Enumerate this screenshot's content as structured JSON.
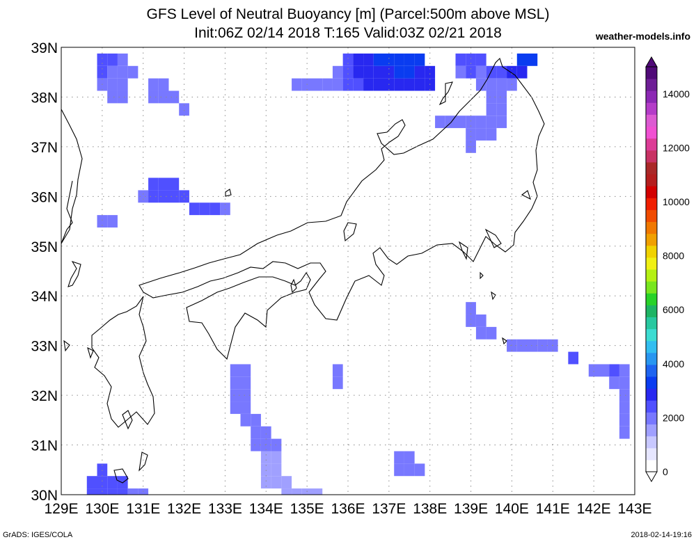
{
  "header": {
    "title_line1": "GFS Level of Neutral Buoyancy [m] (Parcel:500m above MSL)",
    "title_line2": "Init:06Z 02/14 2018 T:165 Valid:03Z 02/21 2018",
    "site": "weather-models.info"
  },
  "footer": {
    "left": "GrADS: IGES/COLA",
    "right": "2018-02-14-19:16"
  },
  "map": {
    "lon_range": [
      129,
      143
    ],
    "lat_range": [
      30,
      39
    ],
    "lon_ticks": [
      "129E",
      "130E",
      "131E",
      "132E",
      "133E",
      "134E",
      "135E",
      "136E",
      "137E",
      "138E",
      "139E",
      "140E",
      "141E",
      "142E",
      "143E"
    ],
    "lat_ticks": [
      "30N",
      "31N",
      "32N",
      "33N",
      "34N",
      "35N",
      "36N",
      "37N",
      "38N",
      "39N"
    ]
  },
  "colorbar": {
    "labels": [
      "0",
      "2000",
      "4000",
      "6000",
      "8000",
      "10000",
      "12000",
      "14000"
    ],
    "colors": [
      "#ffffff",
      "#e6e6ff",
      "#c8c8ff",
      "#a0a0ff",
      "#7878ff",
      "#5050ff",
      "#2828f0",
      "#0a3cf0",
      "#1e64f0",
      "#2896f0",
      "#32bef0",
      "#3cdcd2",
      "#28c8a0",
      "#1eb464",
      "#28d228",
      "#78e61e",
      "#b4f014",
      "#f0f014",
      "#f0d200",
      "#f0a000",
      "#f07800",
      "#f04b00",
      "#f01e00",
      "#d20000",
      "#b41e1e",
      "#aa2828",
      "#c83264",
      "#dc3c96",
      "#f050d2",
      "#dc5ad2",
      "#b43cc8",
      "#8c28b4",
      "#6e1e96",
      "#500a78"
    ],
    "min": 0,
    "max": 15000
  },
  "chart_data": {
    "type": "heatmap",
    "variable": "Level of Neutral Buoyancy",
    "units": "m",
    "grid_spacing_deg": 0.25,
    "cells": [
      {
        "lon": 130.0,
        "lat": 38.75,
        "value": 2400
      },
      {
        "lon": 130.25,
        "lat": 38.75,
        "value": 2300
      },
      {
        "lon": 130.5,
        "lat": 38.75,
        "value": 2200
      },
      {
        "lon": 130.0,
        "lat": 38.5,
        "value": 2300
      },
      {
        "lon": 130.25,
        "lat": 38.5,
        "value": 2200
      },
      {
        "lon": 130.5,
        "lat": 38.5,
        "value": 2000
      },
      {
        "lon": 130.75,
        "lat": 38.5,
        "value": 1800
      },
      {
        "lon": 130.0,
        "lat": 38.25,
        "value": 2100
      },
      {
        "lon": 130.25,
        "lat": 38.25,
        "value": 2000
      },
      {
        "lon": 130.5,
        "lat": 38.25,
        "value": 1900
      },
      {
        "lon": 130.25,
        "lat": 38.0,
        "value": 1800
      },
      {
        "lon": 130.5,
        "lat": 38.0,
        "value": 1800
      },
      {
        "lon": 131.25,
        "lat": 38.25,
        "value": 1900
      },
      {
        "lon": 131.5,
        "lat": 38.25,
        "value": 1800
      },
      {
        "lon": 131.25,
        "lat": 38.0,
        "value": 2000
      },
      {
        "lon": 131.5,
        "lat": 38.0,
        "value": 1900
      },
      {
        "lon": 131.75,
        "lat": 38.0,
        "value": 1800
      },
      {
        "lon": 132.0,
        "lat": 37.75,
        "value": 1900
      },
      {
        "lon": 131.25,
        "lat": 36.25,
        "value": 2400
      },
      {
        "lon": 131.5,
        "lat": 36.25,
        "value": 2500
      },
      {
        "lon": 131.75,
        "lat": 36.25,
        "value": 2400
      },
      {
        "lon": 131.0,
        "lat": 36.0,
        "value": 2100
      },
      {
        "lon": 131.25,
        "lat": 36.0,
        "value": 2400
      },
      {
        "lon": 131.5,
        "lat": 36.0,
        "value": 2500
      },
      {
        "lon": 131.75,
        "lat": 36.0,
        "value": 2400
      },
      {
        "lon": 132.0,
        "lat": 36.0,
        "value": 2300
      },
      {
        "lon": 132.25,
        "lat": 35.75,
        "value": 2300
      },
      {
        "lon": 132.5,
        "lat": 35.75,
        "value": 2400
      },
      {
        "lon": 132.75,
        "lat": 35.75,
        "value": 2300
      },
      {
        "lon": 133.0,
        "lat": 35.75,
        "value": 2200
      },
      {
        "lon": 130.0,
        "lat": 35.5,
        "value": 1900
      },
      {
        "lon": 130.25,
        "lat": 35.5,
        "value": 1900
      },
      {
        "lon": 134.75,
        "lat": 38.25,
        "value": 1800
      },
      {
        "lon": 135.0,
        "lat": 38.25,
        "value": 1900
      },
      {
        "lon": 135.25,
        "lat": 38.25,
        "value": 1900
      },
      {
        "lon": 135.5,
        "lat": 38.25,
        "value": 2000
      },
      {
        "lon": 135.75,
        "lat": 38.25,
        "value": 2100
      },
      {
        "lon": 136.0,
        "lat": 38.25,
        "value": 2300
      },
      {
        "lon": 136.25,
        "lat": 38.25,
        "value": 2500
      },
      {
        "lon": 136.5,
        "lat": 38.25,
        "value": 2700
      },
      {
        "lon": 136.75,
        "lat": 38.25,
        "value": 2800
      },
      {
        "lon": 137.0,
        "lat": 38.25,
        "value": 2900
      },
      {
        "lon": 137.25,
        "lat": 38.25,
        "value": 2900
      },
      {
        "lon": 137.5,
        "lat": 38.25,
        "value": 2800
      },
      {
        "lon": 137.75,
        "lat": 38.25,
        "value": 2800
      },
      {
        "lon": 138.0,
        "lat": 38.25,
        "value": 2700
      },
      {
        "lon": 135.75,
        "lat": 38.5,
        "value": 2100
      },
      {
        "lon": 136.0,
        "lat": 38.5,
        "value": 2400
      },
      {
        "lon": 136.25,
        "lat": 38.5,
        "value": 2700
      },
      {
        "lon": 136.5,
        "lat": 38.5,
        "value": 2900
      },
      {
        "lon": 136.75,
        "lat": 38.5,
        "value": 3000
      },
      {
        "lon": 137.0,
        "lat": 38.5,
        "value": 3000
      },
      {
        "lon": 137.25,
        "lat": 38.5,
        "value": 3100
      },
      {
        "lon": 137.5,
        "lat": 38.5,
        "value": 3100
      },
      {
        "lon": 137.75,
        "lat": 38.5,
        "value": 3000
      },
      {
        "lon": 138.0,
        "lat": 38.5,
        "value": 2900
      },
      {
        "lon": 136.0,
        "lat": 38.75,
        "value": 2500
      },
      {
        "lon": 136.25,
        "lat": 38.75,
        "value": 2800
      },
      {
        "lon": 136.5,
        "lat": 38.75,
        "value": 3000
      },
      {
        "lon": 136.75,
        "lat": 38.75,
        "value": 3100
      },
      {
        "lon": 137.0,
        "lat": 38.75,
        "value": 3200
      },
      {
        "lon": 137.25,
        "lat": 38.75,
        "value": 3200
      },
      {
        "lon": 137.5,
        "lat": 38.75,
        "value": 3200
      },
      {
        "lon": 137.75,
        "lat": 38.75,
        "value": 3100
      },
      {
        "lon": 138.75,
        "lat": 38.75,
        "value": 2500
      },
      {
        "lon": 139.0,
        "lat": 38.75,
        "value": 2600
      },
      {
        "lon": 139.25,
        "lat": 38.75,
        "value": 2500
      },
      {
        "lon": 140.25,
        "lat": 38.75,
        "value": 3300
      },
      {
        "lon": 140.5,
        "lat": 38.75,
        "value": 3500
      },
      {
        "lon": 138.75,
        "lat": 38.5,
        "value": 2200
      },
      {
        "lon": 139.0,
        "lat": 38.5,
        "value": 2300
      },
      {
        "lon": 139.25,
        "lat": 38.5,
        "value": 2200
      },
      {
        "lon": 139.5,
        "lat": 38.5,
        "value": 2400
      },
      {
        "lon": 139.75,
        "lat": 38.5,
        "value": 2300
      },
      {
        "lon": 140.0,
        "lat": 38.5,
        "value": 3000
      },
      {
        "lon": 140.25,
        "lat": 38.5,
        "value": 2900
      },
      {
        "lon": 139.25,
        "lat": 38.25,
        "value": 2100
      },
      {
        "lon": 139.5,
        "lat": 38.25,
        "value": 2200
      },
      {
        "lon": 139.75,
        "lat": 38.25,
        "value": 2100
      },
      {
        "lon": 140.0,
        "lat": 38.25,
        "value": 2000
      },
      {
        "lon": 138.25,
        "lat": 37.5,
        "value": 2000
      },
      {
        "lon": 138.5,
        "lat": 37.5,
        "value": 2000
      },
      {
        "lon": 138.75,
        "lat": 37.5,
        "value": 2000
      },
      {
        "lon": 139.0,
        "lat": 37.5,
        "value": 2100
      },
      {
        "lon": 139.25,
        "lat": 37.5,
        "value": 2200
      },
      {
        "lon": 139.5,
        "lat": 37.5,
        "value": 2200
      },
      {
        "lon": 139.75,
        "lat": 37.5,
        "value": 2100
      },
      {
        "lon": 139.5,
        "lat": 37.75,
        "value": 2100
      },
      {
        "lon": 139.75,
        "lat": 37.75,
        "value": 2100
      },
      {
        "lon": 139.5,
        "lat": 38.0,
        "value": 2000
      },
      {
        "lon": 139.75,
        "lat": 38.0,
        "value": 2000
      },
      {
        "lon": 139.0,
        "lat": 37.25,
        "value": 2100
      },
      {
        "lon": 139.25,
        "lat": 37.25,
        "value": 2100
      },
      {
        "lon": 139.5,
        "lat": 37.25,
        "value": 2000
      },
      {
        "lon": 139.0,
        "lat": 37.0,
        "value": 1900
      },
      {
        "lon": 139.0,
        "lat": 33.75,
        "value": 1800
      },
      {
        "lon": 139.0,
        "lat": 33.5,
        "value": 1800
      },
      {
        "lon": 139.25,
        "lat": 33.5,
        "value": 1900
      },
      {
        "lon": 139.25,
        "lat": 33.25,
        "value": 1900
      },
      {
        "lon": 139.5,
        "lat": 33.25,
        "value": 2000
      },
      {
        "lon": 140.0,
        "lat": 33.0,
        "value": 2000
      },
      {
        "lon": 140.25,
        "lat": 33.0,
        "value": 2100
      },
      {
        "lon": 140.5,
        "lat": 33.0,
        "value": 2100
      },
      {
        "lon": 140.75,
        "lat": 33.0,
        "value": 2100
      },
      {
        "lon": 141.0,
        "lat": 33.0,
        "value": 2000
      },
      {
        "lon": 141.5,
        "lat": 32.75,
        "value": 2300
      },
      {
        "lon": 142.0,
        "lat": 32.5,
        "value": 2000
      },
      {
        "lon": 142.25,
        "lat": 32.5,
        "value": 2200
      },
      {
        "lon": 142.5,
        "lat": 32.5,
        "value": 2300
      },
      {
        "lon": 142.75,
        "lat": 32.5,
        "value": 2100
      },
      {
        "lon": 142.5,
        "lat": 32.25,
        "value": 2200
      },
      {
        "lon": 142.75,
        "lat": 32.25,
        "value": 2000
      },
      {
        "lon": 142.75,
        "lat": 32.0,
        "value": 2200
      },
      {
        "lon": 142.75,
        "lat": 31.75,
        "value": 2100
      },
      {
        "lon": 142.75,
        "lat": 31.5,
        "value": 2000
      },
      {
        "lon": 142.75,
        "lat": 31.25,
        "value": 1900
      },
      {
        "lon": 133.25,
        "lat": 32.5,
        "value": 1800
      },
      {
        "lon": 133.5,
        "lat": 32.5,
        "value": 1800
      },
      {
        "lon": 133.25,
        "lat": 32.25,
        "value": 1800
      },
      {
        "lon": 133.5,
        "lat": 32.25,
        "value": 1800
      },
      {
        "lon": 133.25,
        "lat": 32.0,
        "value": 1800
      },
      {
        "lon": 133.5,
        "lat": 32.0,
        "value": 1800
      },
      {
        "lon": 133.25,
        "lat": 31.75,
        "value": 1900
      },
      {
        "lon": 133.5,
        "lat": 31.75,
        "value": 1800
      },
      {
        "lon": 133.5,
        "lat": 31.5,
        "value": 1800
      },
      {
        "lon": 133.75,
        "lat": 31.5,
        "value": 1800
      },
      {
        "lon": 133.75,
        "lat": 31.25,
        "value": 1800
      },
      {
        "lon": 134.0,
        "lat": 31.25,
        "value": 1800
      },
      {
        "lon": 133.75,
        "lat": 31.0,
        "value": 1800
      },
      {
        "lon": 134.0,
        "lat": 31.0,
        "value": 1800
      },
      {
        "lon": 134.25,
        "lat": 31.0,
        "value": 1800
      },
      {
        "lon": 134.0,
        "lat": 30.75,
        "value": 1700
      },
      {
        "lon": 134.25,
        "lat": 30.75,
        "value": 1700
      },
      {
        "lon": 134.0,
        "lat": 30.5,
        "value": 1700
      },
      {
        "lon": 134.25,
        "lat": 30.5,
        "value": 1700
      },
      {
        "lon": 134.0,
        "lat": 30.25,
        "value": 1700
      },
      {
        "lon": 134.25,
        "lat": 30.25,
        "value": 1700
      },
      {
        "lon": 134.5,
        "lat": 30.25,
        "value": 1700
      },
      {
        "lon": 134.5,
        "lat": 30.0,
        "value": 1700
      },
      {
        "lon": 134.75,
        "lat": 30.0,
        "value": 1700
      },
      {
        "lon": 135.0,
        "lat": 30.0,
        "value": 1700
      },
      {
        "lon": 135.25,
        "lat": 30.0,
        "value": 1700
      },
      {
        "lon": 135.75,
        "lat": 32.5,
        "value": 1800
      },
      {
        "lon": 135.75,
        "lat": 32.25,
        "value": 1800
      },
      {
        "lon": 137.25,
        "lat": 30.75,
        "value": 2000
      },
      {
        "lon": 137.5,
        "lat": 30.75,
        "value": 2000
      },
      {
        "lon": 137.25,
        "lat": 30.5,
        "value": 2000
      },
      {
        "lon": 137.5,
        "lat": 30.5,
        "value": 2100
      },
      {
        "lon": 137.75,
        "lat": 30.5,
        "value": 2000
      },
      {
        "lon": 130.0,
        "lat": 30.5,
        "value": 2400
      },
      {
        "lon": 129.75,
        "lat": 30.25,
        "value": 2400
      },
      {
        "lon": 130.0,
        "lat": 30.25,
        "value": 2400
      },
      {
        "lon": 130.25,
        "lat": 30.25,
        "value": 2300
      },
      {
        "lon": 130.5,
        "lat": 30.25,
        "value": 2300
      },
      {
        "lon": 129.75,
        "lat": 30.0,
        "value": 2300
      },
      {
        "lon": 130.0,
        "lat": 30.0,
        "value": 2400
      },
      {
        "lon": 130.25,
        "lat": 30.0,
        "value": 2400
      },
      {
        "lon": 130.5,
        "lat": 30.0,
        "value": 2300
      },
      {
        "lon": 130.75,
        "lat": 30.0,
        "value": 2200
      },
      {
        "lon": 131.0,
        "lat": 30.0,
        "value": 2000
      }
    ]
  }
}
